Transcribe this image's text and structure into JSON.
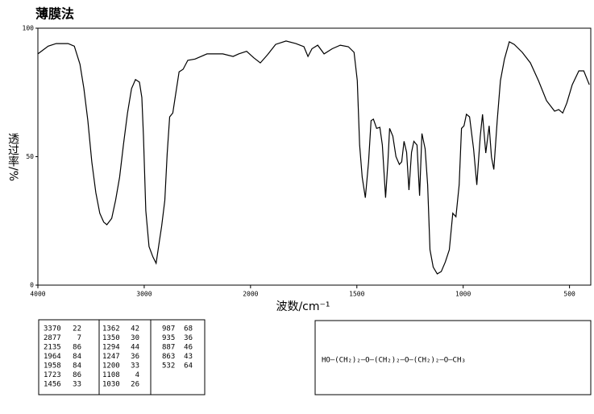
{
  "chart_data": {
    "type": "line",
    "title": "薄膜法",
    "x_label": "波数/cm⁻¹",
    "y_label": "透过率/%",
    "x": [
      4000,
      3903,
      3828,
      3716,
      3657,
      3604,
      3567,
      3530,
      3493,
      3455,
      3418,
      3381,
      3351,
      3306,
      3269,
      3231,
      3194,
      3157,
      3119,
      3082,
      3045,
      3022,
      3007,
      2985,
      2955,
      2918,
      2888,
      2858,
      2836,
      2806,
      2784,
      2761,
      2731,
      2709,
      2672,
      2634,
      2590,
      2522,
      2410,
      2261,
      2164,
      2112,
      2037,
      1985,
      1954,
      1920,
      1882,
      1833,
      1787,
      1749,
      1730,
      1711,
      1684,
      1654,
      1616,
      1578,
      1540,
      1513,
      1498,
      1487,
      1475,
      1460,
      1445,
      1433,
      1422,
      1407,
      1392,
      1380,
      1365,
      1354,
      1346,
      1331,
      1316,
      1300,
      1289,
      1278,
      1266,
      1255,
      1243,
      1232,
      1217,
      1205,
      1194,
      1179,
      1167,
      1156,
      1141,
      1122,
      1103,
      1084,
      1065,
      1049,
      1034,
      1019,
      1008,
      996,
      985,
      970,
      951,
      936,
      920,
      909,
      894,
      878,
      867,
      856,
      840,
      825,
      806,
      783,
      760,
      722,
      684,
      646,
      608,
      570,
      551,
      532,
      513,
      487,
      456,
      433,
      407
    ],
    "values": [
      90,
      93,
      94,
      94,
      93,
      86,
      76.5,
      64,
      48,
      36,
      28,
      24.5,
      23.5,
      26,
      33,
      42,
      55,
      67,
      76.5,
      80,
      79,
      73,
      58,
      29,
      15,
      11,
      8.5,
      17,
      23,
      33,
      51,
      65.5,
      67,
      73,
      83,
      84,
      87.5,
      88,
      90,
      90,
      89,
      90,
      91,
      88.5,
      86.5,
      89.7,
      93.7,
      95,
      94,
      92.8,
      89,
      92,
      93.4,
      90,
      92,
      93.4,
      92.8,
      90.6,
      79.6,
      54.5,
      42,
      34,
      48,
      64,
      64.6,
      61,
      61.4,
      54.5,
      34,
      48,
      61,
      58,
      50,
      47,
      48,
      56,
      51.7,
      37,
      51.7,
      56,
      54.5,
      34.8,
      59,
      53,
      39,
      13.8,
      7,
      4.4,
      5.3,
      9,
      13.8,
      28,
      26.6,
      39,
      61,
      62,
      66.5,
      65.5,
      53,
      39,
      57.7,
      66.5,
      51.4,
      62,
      49.8,
      45,
      64,
      79.6,
      88,
      94.7,
      93.7,
      90.6,
      86.5,
      79.6,
      71.8,
      67.7,
      68.3,
      67,
      70.8,
      78,
      83.4,
      83.4,
      78
    ],
    "color": "#000000",
    "xlim": [
      4000,
      400
    ],
    "x_scale_change": 2000,
    "xticks": [
      4000,
      3000,
      2000,
      1500,
      1000,
      500
    ],
    "ylim": [
      0,
      100
    ],
    "yticks": [
      0,
      50,
      100
    ]
  },
  "peak_table": [
    [
      [
        3370,
        22
      ],
      [
        2877,
        7
      ],
      [
        2135,
        86
      ],
      [
        1964,
        84
      ],
      [
        1958,
        84
      ],
      [
        1723,
        86
      ],
      [
        1456,
        33
      ]
    ],
    [
      [
        1362,
        42
      ],
      [
        1350,
        30
      ],
      [
        1294,
        44
      ],
      [
        1247,
        36
      ],
      [
        1200,
        33
      ],
      [
        1108,
        4
      ],
      [
        1030,
        26
      ]
    ],
    [
      [
        987,
        68
      ],
      [
        935,
        36
      ],
      [
        887,
        46
      ],
      [
        863,
        43
      ],
      [
        532,
        64
      ]
    ]
  ],
  "structure": "HO—(CH₂)₂—O—(CH₂)₂—O—(CH₂)₂—O—CH₃"
}
